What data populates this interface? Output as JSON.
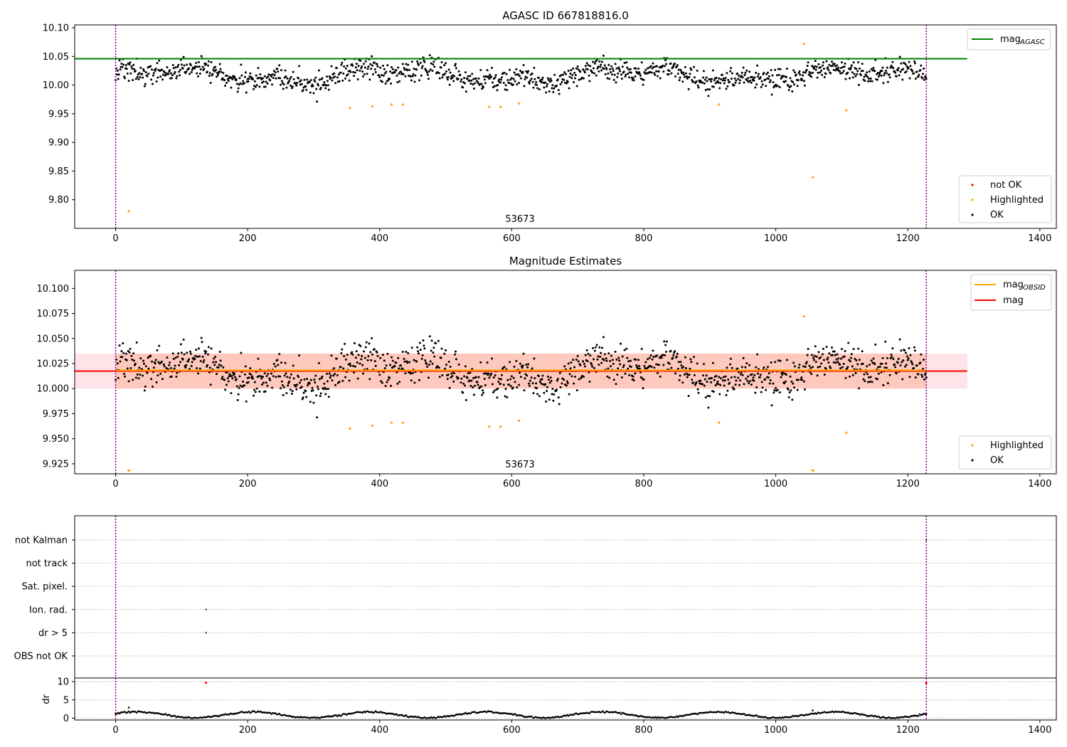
{
  "colors": {
    "ok": "#000000",
    "highlighted": "#ffa500",
    "not_ok": "#ff0000",
    "mag_agasc_line": "#008000",
    "mag_obsid_line": "#ffa500",
    "mag_line": "#ff0000",
    "band_obsid": "#ffa07a",
    "band_mag": "#ffc0cb",
    "obs_boundary": "#800080"
  },
  "chart_data": [
    {
      "type": "scatter",
      "title": "AGASC ID 667818816.0",
      "annotation": "53673",
      "xlim": [
        -62,
        1425
      ],
      "ylim": [
        9.75,
        10.105
      ],
      "xticks": [
        0,
        200,
        400,
        600,
        800,
        1000,
        1200,
        1400
      ],
      "yticks": [
        "9.80",
        "9.85",
        "9.90",
        "9.95",
        "10.00",
        "10.05",
        "10.10"
      ],
      "obs_boundaries": [
        0,
        1228
      ],
      "lines": [
        {
          "name": "mag_AGASC",
          "y": 10.046,
          "x": [
            -62,
            1290
          ]
        }
      ],
      "highlighted_points": [
        [
          20,
          9.78
        ],
        [
          355,
          9.96
        ],
        [
          389,
          9.963
        ],
        [
          418,
          9.966
        ],
        [
          435,
          9.966
        ],
        [
          566,
          9.962
        ],
        [
          583,
          9.962
        ],
        [
          611,
          9.968
        ],
        [
          914,
          9.966
        ],
        [
          1043,
          10.072
        ],
        [
          1056,
          9.839
        ],
        [
          1107,
          9.956
        ]
      ],
      "legend": [
        "not OK",
        "Highlighted",
        "OK"
      ],
      "legend_sub": "AGASC"
    },
    {
      "type": "scatter",
      "title": "Magnitude Estimates",
      "annotation": "53673",
      "xlim": [
        -62,
        1425
      ],
      "ylim": [
        9.915,
        10.118
      ],
      "xticks": [
        0,
        200,
        400,
        600,
        800,
        1000,
        1200,
        1400
      ],
      "yticks": [
        "9.925",
        "9.950",
        "9.975",
        "10.000",
        "10.025",
        "10.050",
        "10.075",
        "10.100"
      ],
      "obs_boundaries": [
        0,
        1228
      ],
      "lines": [
        {
          "name": "mag_OBSID",
          "y": 10.0175,
          "x": [
            0,
            1228
          ]
        },
        {
          "name": "mag",
          "y": 10.0175,
          "x": [
            -62,
            1290
          ]
        }
      ],
      "bands": [
        {
          "name": "mag_OBSID",
          "y0": 10.0,
          "y1": 10.035,
          "x": [
            0,
            1228
          ]
        },
        {
          "name": "mag",
          "y0": 10.0,
          "y1": 10.035,
          "x": [
            -62,
            1290
          ]
        }
      ],
      "highlighted_points": [
        [
          355,
          9.96
        ],
        [
          389,
          9.963
        ],
        [
          418,
          9.966
        ],
        [
          435,
          9.966
        ],
        [
          566,
          9.962
        ],
        [
          583,
          9.962
        ],
        [
          611,
          9.968
        ],
        [
          914,
          9.966
        ],
        [
          1043,
          10.072
        ],
        [
          1107,
          9.956
        ]
      ],
      "out_of_range_markers": [
        20,
        1056
      ],
      "legend": [
        "Highlighted",
        "OK"
      ],
      "legend_sub": "OBSID"
    },
    {
      "type": "scatter",
      "flag_labels": [
        "not Kalman",
        "not track",
        "Sat. pixel.",
        "Ion. rad.",
        "dr > 5",
        "OBS not OK"
      ],
      "flag_points": [
        {
          "flag": "Ion. rad.",
          "x": 137
        },
        {
          "flag": "dr > 5",
          "x": 137
        },
        {
          "flag": "not Kalman",
          "x": 1228
        }
      ],
      "xlim": [
        -62,
        1425
      ],
      "xticks": [
        0,
        200,
        400,
        600,
        800,
        1000,
        1200,
        1400
      ],
      "obs_boundaries": [
        0,
        1228
      ]
    },
    {
      "type": "scatter",
      "ylabel": "dr",
      "xlim": [
        -62,
        1425
      ],
      "ylim": [
        -0.5,
        11
      ],
      "yticks": [
        "0",
        "5",
        "10"
      ],
      "xticks": [
        0,
        200,
        400,
        600,
        800,
        1000,
        1200,
        1400
      ],
      "obs_boundaries": [
        0,
        1228
      ],
      "red_points": [
        [
          137,
          9.7
        ],
        [
          1228,
          9.6
        ]
      ],
      "outlier_points": [
        [
          20,
          2.9
        ],
        [
          1056,
          2.1
        ]
      ]
    }
  ]
}
